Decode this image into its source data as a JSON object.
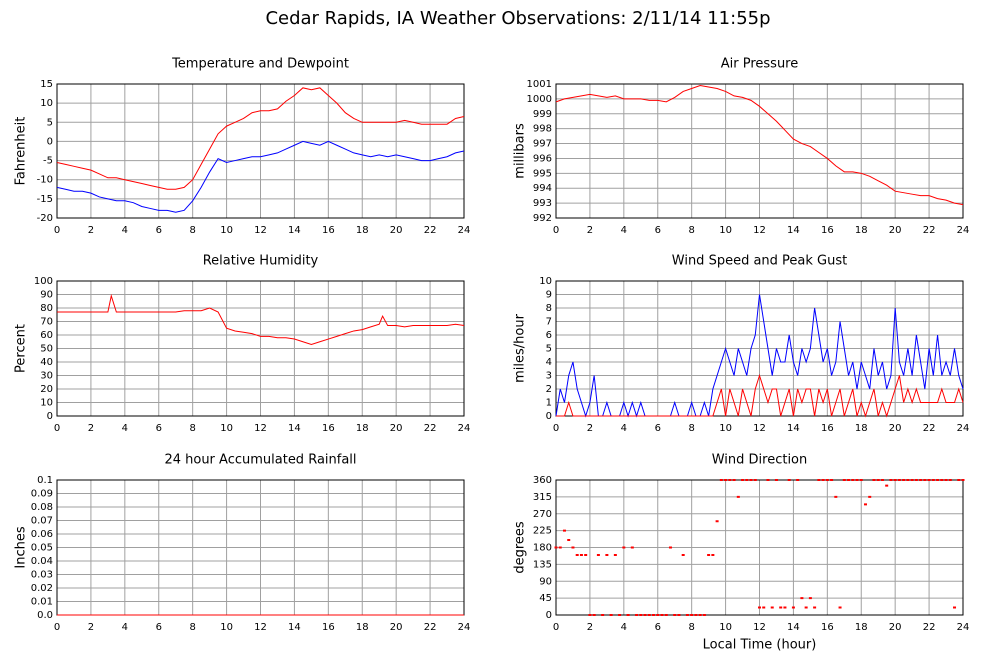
{
  "title": "Cedar Rapids, IA Weather Observations: 2/11/14 11:55p",
  "chart_data": [
    {
      "type": "line",
      "title": "Temperature and Dewpoint",
      "ylabel": "Fahrenheit",
      "grid": true,
      "x": [
        0,
        0.5,
        1,
        1.5,
        2,
        2.5,
        3,
        3.5,
        4,
        4.5,
        5,
        5.5,
        6,
        6.5,
        7,
        7.5,
        8,
        8.5,
        9,
        9.5,
        10,
        10.5,
        11,
        11.5,
        12,
        12.5,
        13,
        13.5,
        14,
        14.5,
        15,
        15.5,
        16,
        16.5,
        17,
        17.5,
        18,
        18.5,
        19,
        19.5,
        20,
        20.5,
        21,
        21.5,
        22,
        22.5,
        23,
        23.5,
        24
      ],
      "xlim": [
        0,
        24
      ],
      "xticks": [
        0,
        2,
        4,
        6,
        8,
        10,
        12,
        14,
        16,
        18,
        20,
        22,
        24
      ],
      "ylim": [
        -20,
        15
      ],
      "yticks": [
        -20,
        -15,
        -10,
        -5,
        0,
        5,
        10,
        15
      ],
      "series": [
        {
          "color": "#ff0000",
          "values": [
            -5.5,
            -6,
            -6.5,
            -7,
            -7.5,
            -8.5,
            -9.5,
            -9.5,
            -10,
            -10.5,
            -11,
            -11.5,
            -12,
            -12.5,
            -12.5,
            -12,
            -10,
            -6,
            -2,
            2,
            4,
            5,
            6,
            7.5,
            8,
            8,
            8.5,
            10.5,
            12,
            14,
            13.5,
            14,
            12,
            10,
            7.5,
            6,
            5,
            5,
            5,
            5,
            5,
            5.5,
            5,
            4.5,
            4.5,
            4.5,
            4.5,
            6,
            6.5
          ]
        },
        {
          "color": "#0000ff",
          "values": [
            -12,
            -12.5,
            -13,
            -13,
            -13.5,
            -14.5,
            -15,
            -15.5,
            -15.5,
            -16,
            -17,
            -17.5,
            -18,
            -18,
            -18.5,
            -18,
            -15.5,
            -12,
            -8,
            -4.5,
            -5.5,
            -5,
            -4.5,
            -4,
            -4,
            -3.5,
            -3,
            -2,
            -1,
            0,
            -0.5,
            -1,
            0,
            -1,
            -2,
            -3,
            -3.5,
            -4,
            -3.5,
            -4,
            -3.5,
            -4,
            -4.5,
            -5,
            -5,
            -4.5,
            -4,
            -3,
            -2.5
          ]
        }
      ]
    },
    {
      "type": "line",
      "title": "Air Pressure",
      "ylabel": "millibars",
      "grid": true,
      "x": [
        0,
        0.5,
        1,
        1.5,
        2,
        2.5,
        3,
        3.5,
        4,
        4.5,
        5,
        5.5,
        6,
        6.5,
        7,
        7.5,
        8,
        8.5,
        9,
        9.5,
        10,
        10.5,
        11,
        11.5,
        12,
        12.5,
        13,
        13.5,
        14,
        14.5,
        15,
        15.5,
        16,
        16.5,
        17,
        17.5,
        18,
        18.5,
        19,
        19.5,
        20,
        20.5,
        21,
        21.5,
        22,
        22.5,
        23,
        23.5,
        24
      ],
      "xlim": [
        0,
        24
      ],
      "xticks": [
        0,
        2,
        4,
        6,
        8,
        10,
        12,
        14,
        16,
        18,
        20,
        22,
        24
      ],
      "ylim": [
        992,
        1001
      ],
      "yticks": [
        992,
        993,
        994,
        995,
        996,
        997,
        998,
        999,
        1000,
        1001
      ],
      "series": [
        {
          "color": "#ff0000",
          "values": [
            999.8,
            1000,
            1000.1,
            1000.2,
            1000.3,
            1000.2,
            1000.1,
            1000.2,
            1000,
            1000,
            1000,
            999.9,
            999.9,
            999.8,
            1000.1,
            1000.5,
            1000.7,
            1000.9,
            1000.8,
            1000.7,
            1000.5,
            1000.2,
            1000.1,
            999.9,
            999.5,
            999,
            998.5,
            997.9,
            997.3,
            997,
            996.8,
            996.4,
            996,
            995.5,
            995.1,
            995.1,
            995,
            994.8,
            994.5,
            994.2,
            993.8,
            993.7,
            993.6,
            993.5,
            993.5,
            993.3,
            993.2,
            993,
            992.9
          ]
        }
      ]
    },
    {
      "type": "line",
      "title": "Relative Humidity",
      "ylabel": "Percent",
      "grid": true,
      "x": [
        0,
        0.5,
        1,
        1.5,
        2,
        2.5,
        3,
        3.2,
        3.5,
        4,
        4.5,
        5,
        5.5,
        6,
        6.5,
        7,
        7.5,
        8,
        8.5,
        9,
        9.5,
        10,
        10.5,
        11,
        11.5,
        12,
        12.5,
        13,
        13.5,
        14,
        14.5,
        15,
        15.5,
        16,
        16.5,
        17,
        17.5,
        18,
        18.5,
        19,
        19.2,
        19.5,
        20,
        20.5,
        21,
        21.5,
        22,
        22.5,
        23,
        23.5,
        24
      ],
      "xlim": [
        0,
        24
      ],
      "xticks": [
        0,
        2,
        4,
        6,
        8,
        10,
        12,
        14,
        16,
        18,
        20,
        22,
        24
      ],
      "ylim": [
        0,
        100
      ],
      "yticks": [
        0,
        10,
        20,
        30,
        40,
        50,
        60,
        70,
        80,
        90,
        100
      ],
      "series": [
        {
          "color": "#ff0000",
          "values": [
            77,
            77,
            77,
            77,
            77,
            77,
            77,
            89,
            77,
            77,
            77,
            77,
            77,
            77,
            77,
            77,
            78,
            78,
            78,
            80,
            77,
            65,
            63,
            62,
            61,
            59,
            59,
            58,
            58,
            57,
            55,
            53,
            55,
            57,
            59,
            61,
            63,
            64,
            66,
            68,
            74,
            67,
            67,
            66,
            67,
            67,
            67,
            67,
            67,
            68,
            67
          ]
        }
      ]
    },
    {
      "type": "line",
      "title": "Wind Speed and Peak Gust",
      "ylabel": "miles/hour",
      "grid": true,
      "x": [
        0,
        0.25,
        0.5,
        0.75,
        1,
        1.25,
        1.5,
        1.75,
        2,
        2.25,
        2.5,
        2.75,
        3,
        3.25,
        3.5,
        3.75,
        4,
        4.25,
        4.5,
        4.75,
        5,
        5.25,
        5.5,
        5.75,
        6,
        6.25,
        6.5,
        6.75,
        7,
        7.25,
        7.5,
        7.75,
        8,
        8.25,
        8.5,
        8.75,
        9,
        9.25,
        9.5,
        9.75,
        10,
        10.25,
        10.5,
        10.75,
        11,
        11.25,
        11.5,
        11.75,
        12,
        12.25,
        12.5,
        12.75,
        13,
        13.25,
        13.5,
        13.75,
        14,
        14.25,
        14.5,
        14.75,
        15,
        15.25,
        15.5,
        15.75,
        16,
        16.25,
        16.5,
        16.75,
        17,
        17.25,
        17.5,
        17.75,
        18,
        18.25,
        18.5,
        18.75,
        19,
        19.25,
        19.5,
        19.75,
        20,
        20.25,
        20.5,
        20.75,
        21,
        21.25,
        21.5,
        21.75,
        22,
        22.25,
        22.5,
        22.75,
        23,
        23.25,
        23.5,
        23.75,
        24
      ],
      "xlim": [
        0,
        24
      ],
      "xticks": [
        0,
        2,
        4,
        6,
        8,
        10,
        12,
        14,
        16,
        18,
        20,
        22,
        24
      ],
      "ylim": [
        0,
        10
      ],
      "yticks": [
        0,
        1,
        2,
        3,
        4,
        5,
        6,
        7,
        8,
        9,
        10
      ],
      "series": [
        {
          "color": "#0000ff",
          "values": [
            0,
            2,
            1,
            3,
            4,
            2,
            1,
            0,
            1,
            3,
            0,
            0,
            1,
            0,
            0,
            0,
            1,
            0,
            1,
            0,
            1,
            0,
            0,
            0,
            0,
            0,
            0,
            0,
            1,
            0,
            0,
            0,
            1,
            0,
            0,
            1,
            0,
            2,
            3,
            4,
            5,
            4,
            3,
            5,
            4,
            3,
            5,
            6,
            9,
            7,
            5,
            3,
            5,
            4,
            4,
            6,
            4,
            3,
            5,
            4,
            5,
            8,
            6,
            4,
            5,
            3,
            4,
            7,
            5,
            3,
            4,
            2,
            4,
            3,
            2,
            5,
            3,
            4,
            2,
            3,
            8,
            4,
            3,
            5,
            3,
            6,
            4,
            2,
            5,
            3,
            6,
            3,
            4,
            3,
            5,
            3,
            2
          ]
        },
        {
          "color": "#ff0000",
          "values": [
            0,
            0,
            0,
            1,
            0,
            0,
            0,
            0,
            0,
            0,
            0,
            0,
            0,
            0,
            0,
            0,
            0,
            0,
            0,
            0,
            0,
            0,
            0,
            0,
            0,
            0,
            0,
            0,
            0,
            0,
            0,
            0,
            0,
            0,
            0,
            0,
            0,
            0,
            1,
            2,
            0,
            2,
            1,
            0,
            2,
            1,
            0,
            2,
            3,
            2,
            1,
            2,
            2,
            0,
            1,
            2,
            0,
            2,
            1,
            2,
            2,
            0,
            2,
            1,
            2,
            0,
            1,
            2,
            0,
            1,
            2,
            0,
            1,
            0,
            1,
            2,
            0,
            1,
            0,
            1,
            2,
            3,
            1,
            2,
            1,
            2,
            1,
            1,
            1,
            1,
            1,
            2,
            1,
            1,
            1,
            2,
            1
          ]
        }
      ]
    },
    {
      "type": "line",
      "title": "24 hour Accumulated Rainfall",
      "ylabel": "Inches",
      "grid": true,
      "x": [
        0,
        24
      ],
      "xlim": [
        0,
        24
      ],
      "xticks": [
        0,
        2,
        4,
        6,
        8,
        10,
        12,
        14,
        16,
        18,
        20,
        22,
        24
      ],
      "ylim": [
        0,
        0.1
      ],
      "yticks": [
        {
          "value": 0,
          "label": "0.0"
        },
        0.01,
        0.02,
        0.03,
        0.04,
        0.05,
        0.06,
        0.07,
        0.08,
        0.09,
        0.1
      ],
      "series": [
        {
          "color": "#ff0000",
          "values": [
            0,
            0
          ]
        }
      ]
    },
    {
      "type": "scatter",
      "title": "Wind Direction",
      "ylabel": "degrees",
      "xlabel": "Local Time (hour)",
      "grid": true,
      "x": [
        0,
        0.25,
        0.5,
        0.75,
        1,
        1.25,
        1.5,
        1.75,
        2,
        2.25,
        2.5,
        2.75,
        3,
        3.25,
        3.5,
        3.75,
        4,
        4.25,
        4.5,
        4.75,
        5,
        5.25,
        5.5,
        5.75,
        6,
        6.25,
        6.5,
        6.75,
        7,
        7.25,
        7.5,
        7.75,
        8,
        8.25,
        8.5,
        8.75,
        9,
        9.25,
        9.5,
        9.75,
        10,
        10.25,
        10.5,
        10.75,
        11,
        11.25,
        11.5,
        11.75,
        12,
        12.25,
        12.5,
        12.75,
        13,
        13.25,
        13.5,
        13.75,
        14,
        14.25,
        14.5,
        14.75,
        15,
        15.25,
        15.5,
        15.75,
        16,
        16.25,
        16.5,
        16.75,
        17,
        17.25,
        17.5,
        17.75,
        18,
        18.25,
        18.5,
        18.75,
        19,
        19.25,
        19.5,
        19.75,
        20,
        20.25,
        20.5,
        20.75,
        21,
        21.25,
        21.5,
        21.75,
        22,
        22.25,
        22.5,
        22.75,
        23,
        23.25,
        23.5,
        23.75,
        24
      ],
      "xlim": [
        0,
        24
      ],
      "xticks": [
        0,
        2,
        4,
        6,
        8,
        10,
        12,
        14,
        16,
        18,
        20,
        22,
        24
      ],
      "ylim": [
        0,
        360
      ],
      "yticks": [
        0,
        45,
        90,
        135,
        180,
        225,
        270,
        315,
        360
      ],
      "color": "#ff0000",
      "values": [
        180,
        180,
        225,
        200,
        180,
        160,
        160,
        160,
        0,
        0,
        160,
        0,
        160,
        0,
        160,
        0,
        180,
        0,
        180,
        0,
        0,
        0,
        0,
        0,
        0,
        0,
        0,
        180,
        0,
        0,
        160,
        0,
        0,
        0,
        0,
        0,
        160,
        160,
        250,
        360,
        360,
        360,
        360,
        315,
        360,
        360,
        360,
        360,
        20,
        20,
        360,
        20,
        360,
        20,
        20,
        360,
        20,
        360,
        45,
        20,
        45,
        20,
        360,
        360,
        360,
        360,
        315,
        20,
        360,
        360,
        360,
        360,
        360,
        295,
        315,
        360,
        360,
        360,
        345,
        360,
        360,
        360,
        360,
        360,
        360,
        360,
        360,
        360,
        360,
        360,
        360,
        360,
        360,
        360,
        20,
        360,
        360
      ]
    }
  ]
}
